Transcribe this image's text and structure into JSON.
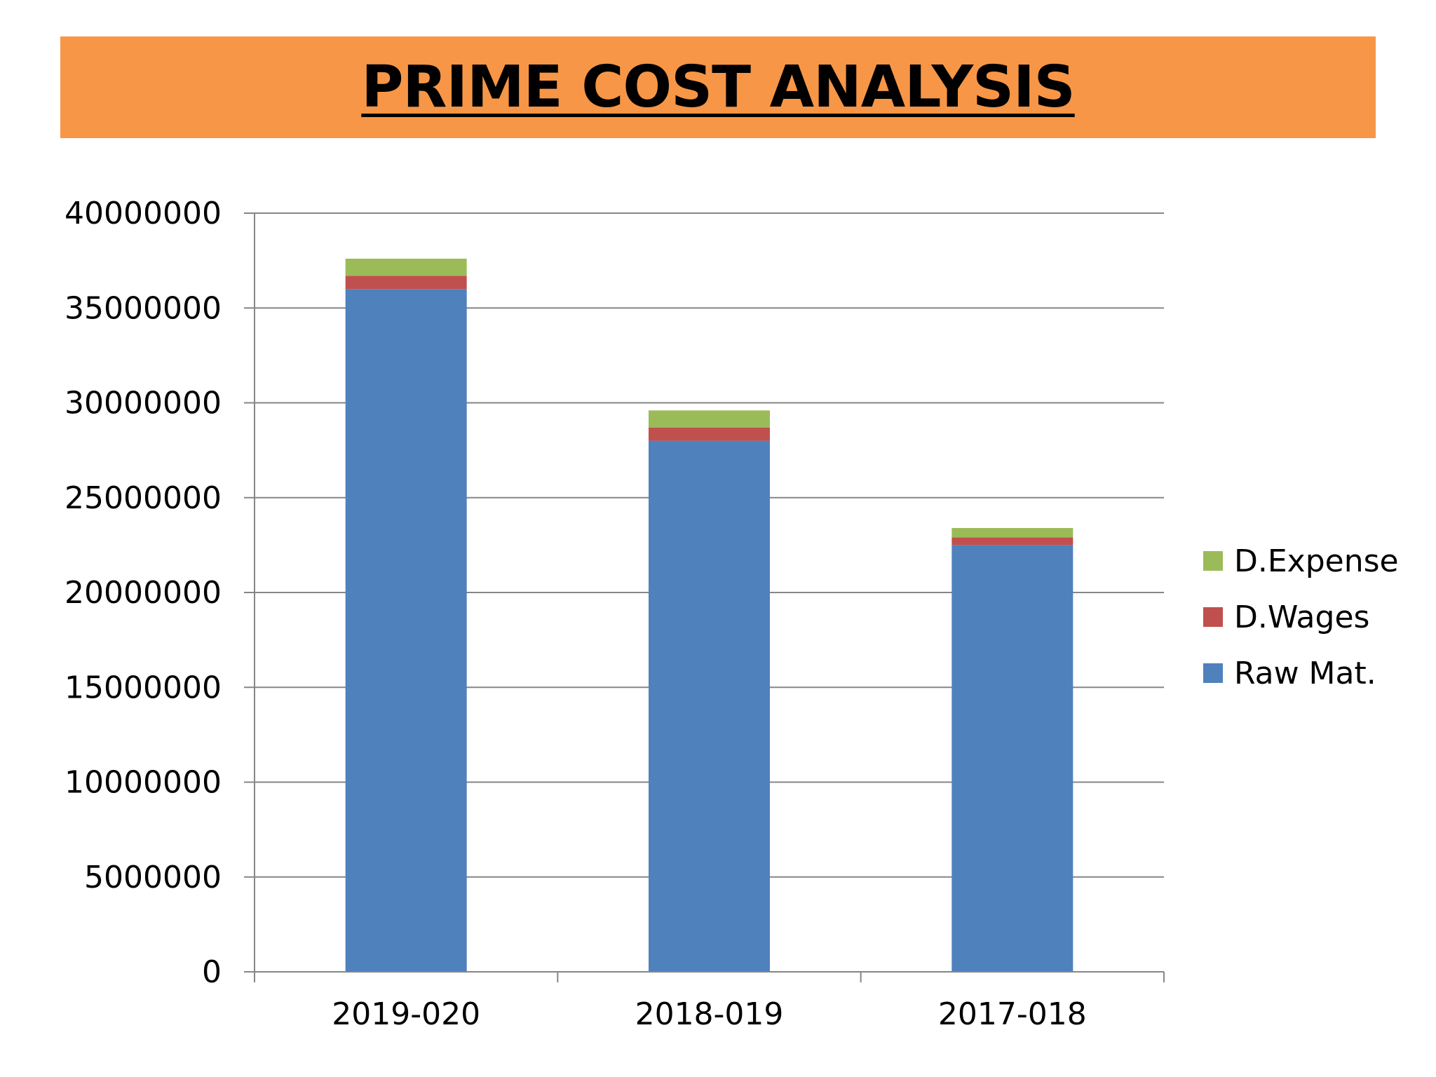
{
  "title": "PRIME COST ANALYSIS",
  "colors": {
    "title_band": "#f79646",
    "raw_mat": "#4f81bd",
    "d_wages": "#c0504d",
    "d_expense": "#9bbb59",
    "grid": "#868686",
    "axis": "#868686"
  },
  "chart_data": {
    "type": "bar",
    "stacked": true,
    "title": "PRIME COST ANALYSIS",
    "xlabel": "",
    "ylabel": "",
    "categories": [
      "2019-020",
      "2018-019",
      "2017-018"
    ],
    "series": [
      {
        "name": "Raw Mat.",
        "color": "#4f81bd",
        "values": [
          36000000,
          28000000,
          22500000
        ]
      },
      {
        "name": "D.Wages",
        "color": "#c0504d",
        "values": [
          700000,
          700000,
          400000
        ]
      },
      {
        "name": "D.Expense",
        "color": "#9bbb59",
        "values": [
          900000,
          900000,
          500000
        ]
      }
    ],
    "ylim": [
      0,
      40000000
    ],
    "yticks": [
      0,
      5000000,
      10000000,
      15000000,
      20000000,
      25000000,
      30000000,
      35000000,
      40000000
    ],
    "ytick_labels": [
      "0",
      "5000000",
      "10000000",
      "15000000",
      "20000000",
      "25000000",
      "30000000",
      "35000000",
      "40000000"
    ],
    "grid": true,
    "legend": {
      "position": "right",
      "order": [
        "D.Expense",
        "D.Wages",
        "Raw Mat."
      ]
    }
  }
}
